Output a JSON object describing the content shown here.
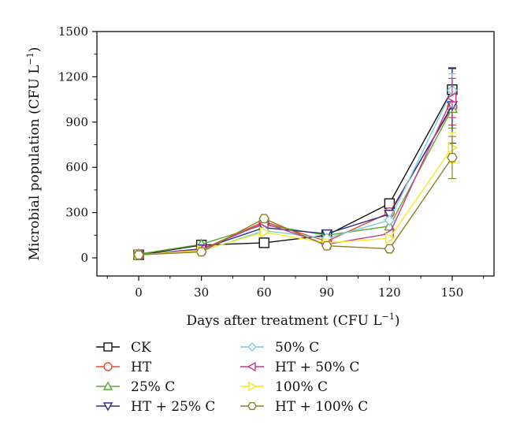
{
  "chart_data": {
    "type": "line",
    "xlabel": "Days after treatment (CFU L",
    "xlabel_sup": "−1",
    "xlabel_close": ")",
    "ylabel": "Microbial population (CFU L",
    "ylabel_sup": "−1",
    "ylabel_close": ")",
    "x": [
      0,
      30,
      60,
      90,
      120,
      150
    ],
    "x_ticks": [
      "0",
      "30",
      "60",
      "90",
      "120",
      "150"
    ],
    "y_ticks": [
      "0",
      "300",
      "600",
      "900",
      "1200",
      "1500"
    ],
    "xlim": [
      -20,
      170
    ],
    "ylim": [
      -120,
      1500
    ],
    "grid": false,
    "legend_position": "bottom-left",
    "series": [
      {
        "name": "CK",
        "color": "#111111",
        "marker": "square",
        "values": [
          20,
          85,
          100,
          150,
          360,
          1115
        ],
        "err": [
          0,
          0,
          0,
          0,
          0,
          140
        ]
      },
      {
        "name": "HT",
        "color": "#e8482f",
        "marker": "circle",
        "values": [
          20,
          55,
          240,
          110,
          300,
          1000
        ],
        "err": [
          0,
          0,
          0,
          0,
          0,
          120
        ]
      },
      {
        "name": "25% C",
        "color": "#5aaa32",
        "marker": "triangle-up",
        "values": [
          25,
          90,
          220,
          150,
          210,
          990
        ],
        "err": [
          0,
          0,
          0,
          0,
          0,
          130
        ]
      },
      {
        "name": "HT + 25% C",
        "color": "#2b2e8f",
        "marker": "triangle-down",
        "values": [
          20,
          60,
          200,
          160,
          290,
          1010
        ],
        "err": [
          0,
          0,
          0,
          0,
          0,
          250
        ]
      },
      {
        "name": "50% C",
        "color": "#7fcbd8",
        "marker": "diamond",
        "values": [
          20,
          45,
          180,
          130,
          250,
          1110
        ],
        "err": [
          0,
          0,
          0,
          0,
          0,
          110
        ]
      },
      {
        "name": "HT + 50% C",
        "color": "#c8378f",
        "marker": "triangle-left",
        "values": [
          20,
          55,
          230,
          90,
          160,
          1060
        ],
        "err": [
          0,
          0,
          0,
          0,
          0,
          130
        ]
      },
      {
        "name": "100% C",
        "color": "#f2ea26",
        "marker": "triangle-right",
        "values": [
          20,
          50,
          170,
          100,
          130,
          730
        ],
        "err": [
          0,
          0,
          0,
          0,
          0,
          100
        ]
      },
      {
        "name": "HT + 100% C",
        "color": "#8a7f2a",
        "marker": "hexagon",
        "values": [
          20,
          40,
          260,
          80,
          60,
          665
        ],
        "err": [
          0,
          0,
          0,
          0,
          0,
          140
        ]
      }
    ]
  }
}
